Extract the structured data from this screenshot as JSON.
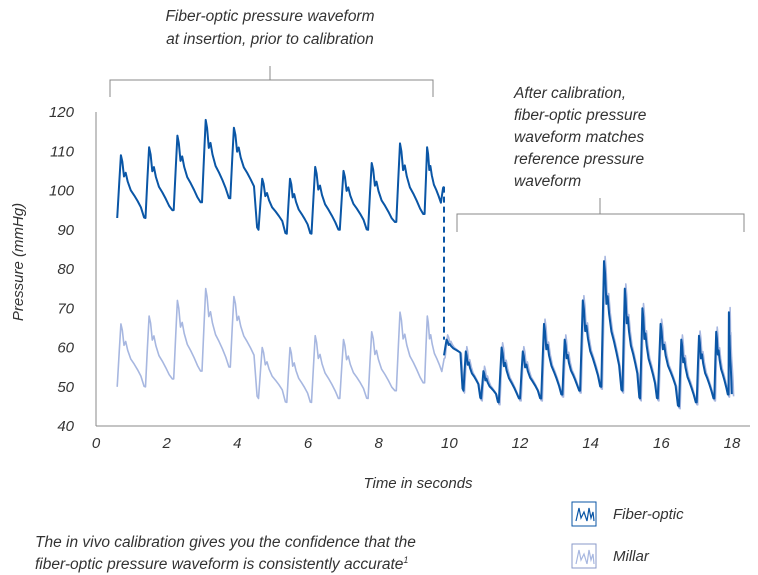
{
  "chart_data": {
    "type": "line",
    "title": "",
    "xlabel": "Time in seconds",
    "ylabel": "Pressure (mmHg)",
    "xlim": [
      0,
      18
    ],
    "ylim": [
      40,
      120
    ],
    "x_ticks": [
      "0",
      "2",
      "4",
      "6",
      "8",
      "10",
      "12",
      "14",
      "16",
      "18"
    ],
    "y_ticks": [
      "40",
      "50",
      "60",
      "70",
      "80",
      "90",
      "100",
      "110",
      "120"
    ],
    "grid": false,
    "legend_position": "bottom-right",
    "colors": {
      "fiber_optic": "#0a56a6",
      "millar": "#a7b7e0",
      "axis": "#888888",
      "text": "#333333"
    },
    "calibration_time": 9.85,
    "series": [
      {
        "name": "Fiber-optic",
        "color": "#0a56a6",
        "beats": [
          {
            "t": 0.6,
            "min": 93,
            "max": 109
          },
          {
            "t": 1.4,
            "min": 93,
            "max": 111
          },
          {
            "t": 2.2,
            "min": 95,
            "max": 114
          },
          {
            "t": 3.0,
            "min": 97,
            "max": 118
          },
          {
            "t": 3.8,
            "min": 98,
            "max": 116
          },
          {
            "t": 4.6,
            "min": 90,
            "max": 103
          },
          {
            "t": 5.4,
            "min": 89,
            "max": 103
          },
          {
            "t": 6.1,
            "min": 89,
            "max": 106
          },
          {
            "t": 6.9,
            "min": 90,
            "max": 105
          },
          {
            "t": 7.7,
            "min": 90,
            "max": 107
          },
          {
            "t": 8.5,
            "min": 92,
            "max": 112
          },
          {
            "t": 9.3,
            "min": 94,
            "max": 111
          },
          {
            "t": 9.85,
            "min": 101,
            "max": 101
          }
        ],
        "after_calibration_beats": [
          {
            "t": 9.85,
            "min": 58,
            "max": 62
          },
          {
            "t": 10.4,
            "min": 49,
            "max": 59
          },
          {
            "t": 10.9,
            "min": 47,
            "max": 54
          },
          {
            "t": 11.4,
            "min": 46,
            "max": 60
          },
          {
            "t": 12.0,
            "min": 47,
            "max": 59
          },
          {
            "t": 12.6,
            "min": 47,
            "max": 66
          },
          {
            "t": 13.2,
            "min": 48,
            "max": 62
          },
          {
            "t": 13.7,
            "min": 49,
            "max": 72
          },
          {
            "t": 14.3,
            "min": 50,
            "max": 82
          },
          {
            "t": 14.9,
            "min": 49,
            "max": 75
          },
          {
            "t": 15.4,
            "min": 47,
            "max": 70
          },
          {
            "t": 15.9,
            "min": 47,
            "max": 66
          },
          {
            "t": 16.5,
            "min": 45,
            "max": 62
          },
          {
            "t": 17.0,
            "min": 46,
            "max": 63
          },
          {
            "t": 17.5,
            "min": 47,
            "max": 64
          },
          {
            "t": 17.9,
            "min": 48,
            "max": 69
          }
        ]
      },
      {
        "name": "Millar",
        "color": "#a7b7e0",
        "beats": [
          {
            "t": 0.6,
            "min": 50,
            "max": 66
          },
          {
            "t": 1.4,
            "min": 50,
            "max": 68
          },
          {
            "t": 2.2,
            "min": 52,
            "max": 72
          },
          {
            "t": 3.0,
            "min": 54,
            "max": 75
          },
          {
            "t": 3.8,
            "min": 55,
            "max": 73
          },
          {
            "t": 4.6,
            "min": 47,
            "max": 60
          },
          {
            "t": 5.4,
            "min": 46,
            "max": 60
          },
          {
            "t": 6.1,
            "min": 46,
            "max": 63
          },
          {
            "t": 6.9,
            "min": 47,
            "max": 62
          },
          {
            "t": 7.7,
            "min": 47,
            "max": 64
          },
          {
            "t": 8.5,
            "min": 49,
            "max": 69
          },
          {
            "t": 9.3,
            "min": 51,
            "max": 68
          }
        ]
      }
    ],
    "annotations": [
      {
        "text_lines": [
          "Fiber-optic pressure waveform",
          "at insertion, prior to calibration"
        ],
        "x_range": [
          0.6,
          9.85
        ]
      },
      {
        "text_lines": [
          "After calibration,",
          "fiber-optic pressure",
          "waveform matches",
          "reference pressure",
          "waveform"
        ],
        "x_range": [
          10.2,
          18.3
        ]
      }
    ]
  },
  "legend": {
    "items": [
      {
        "label": "Fiber-optic",
        "icon": "fiber-optic-waveform-icon"
      },
      {
        "label": "Millar",
        "icon": "millar-waveform-icon"
      }
    ]
  },
  "footnote": {
    "line1": "The in vivo calibration gives you the confidence that the",
    "line2": "fiber-optic pressure waveform is consistently accurate",
    "superscript": "1"
  }
}
